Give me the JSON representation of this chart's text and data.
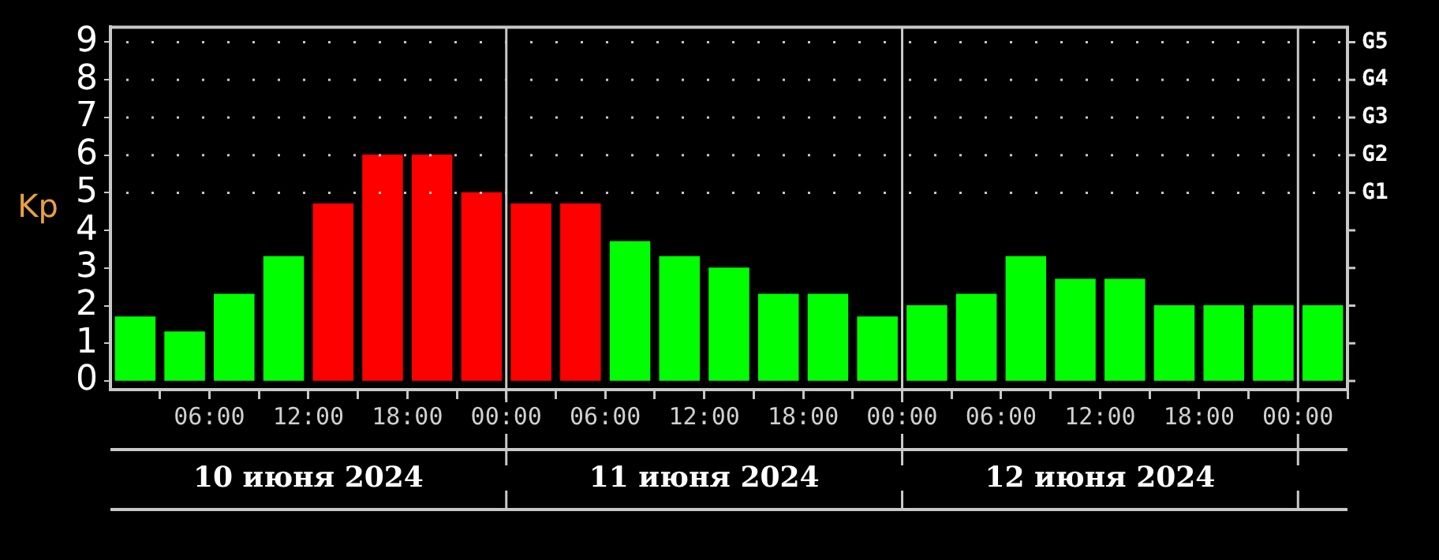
{
  "chart_data": {
    "type": "bar",
    "ylabel": "Kp",
    "x": [
      "2024-06-10T01:30",
      "2024-06-10T04:30",
      "2024-06-10T07:30",
      "2024-06-10T10:30",
      "2024-06-10T13:30",
      "2024-06-10T16:30",
      "2024-06-10T19:30",
      "2024-06-10T22:30",
      "2024-06-11T01:30",
      "2024-06-11T04:30",
      "2024-06-11T07:30",
      "2024-06-11T10:30",
      "2024-06-11T13:30",
      "2024-06-11T16:30",
      "2024-06-11T19:30",
      "2024-06-11T22:30",
      "2024-06-12T01:30",
      "2024-06-12T04:30",
      "2024-06-12T07:30",
      "2024-06-12T10:30",
      "2024-06-12T13:30",
      "2024-06-12T16:30",
      "2024-06-12T19:30",
      "2024-06-12T22:30",
      "2024-06-13T01:30"
    ],
    "values": [
      1.7,
      1.3,
      2.3,
      3.3,
      4.7,
      6,
      6,
      5,
      4.7,
      4.7,
      3.7,
      3.3,
      3,
      2.3,
      2.3,
      1.7,
      2,
      2.3,
      3.3,
      2.7,
      2.7,
      2,
      2,
      2,
      2
    ],
    "colors": [
      "#00ff00",
      "#00ff00",
      "#00ff00",
      "#00ff00",
      "#ff0000",
      "#ff0000",
      "#ff0000",
      "#ff0000",
      "#ff0000",
      "#ff0000",
      "#00ff00",
      "#00ff00",
      "#00ff00",
      "#00ff00",
      "#00ff00",
      "#00ff00",
      "#00ff00",
      "#00ff00",
      "#00ff00",
      "#00ff00",
      "#00ff00",
      "#00ff00",
      "#00ff00",
      "#00ff00",
      "#00ff00"
    ],
    "xlim": [
      "2024-06-10T00:00",
      "2024-06-13T03:00"
    ],
    "xticks": [
      {
        "value": "2024-06-10T03:00",
        "label": null
      },
      {
        "value": "2024-06-10T06:00",
        "label": "06:00"
      },
      {
        "value": "2024-06-10T09:00",
        "label": null
      },
      {
        "value": "2024-06-10T12:00",
        "label": "12:00"
      },
      {
        "value": "2024-06-10T15:00",
        "label": null
      },
      {
        "value": "2024-06-10T18:00",
        "label": "18:00"
      },
      {
        "value": "2024-06-10T21:00",
        "label": null
      },
      {
        "value": "2024-06-11T00:00",
        "label": "00:00"
      },
      {
        "value": "2024-06-11T03:00",
        "label": null
      },
      {
        "value": "2024-06-11T06:00",
        "label": "06:00"
      },
      {
        "value": "2024-06-11T09:00",
        "label": null
      },
      {
        "value": "2024-06-11T12:00",
        "label": "12:00"
      },
      {
        "value": "2024-06-11T15:00",
        "label": null
      },
      {
        "value": "2024-06-11T18:00",
        "label": "18:00"
      },
      {
        "value": "2024-06-11T21:00",
        "label": null
      },
      {
        "value": "2024-06-12T00:00",
        "label": "00:00"
      },
      {
        "value": "2024-06-12T03:00",
        "label": null
      },
      {
        "value": "2024-06-12T06:00",
        "label": "06:00"
      },
      {
        "value": "2024-06-12T09:00",
        "label": null
      },
      {
        "value": "2024-06-12T12:00",
        "label": "12:00"
      },
      {
        "value": "2024-06-12T15:00",
        "label": null
      },
      {
        "value": "2024-06-12T18:00",
        "label": "18:00"
      },
      {
        "value": "2024-06-12T21:00",
        "label": null
      },
      {
        "value": "2024-06-13T00:00",
        "label": "00:00"
      },
      {
        "value": "2024-06-13T03:00",
        "label": null
      }
    ],
    "ylim": [
      -0.23,
      9.4
    ],
    "yticks": [
      0,
      1,
      2,
      3,
      4,
      5,
      6,
      7,
      8,
      9
    ],
    "ref_lines": [
      {
        "axis": "x",
        "value": "2024-06-11T00:00",
        "color": "#c8c8c8"
      },
      {
        "axis": "x",
        "value": "2024-06-12T00:00",
        "color": "#c8c8c8"
      },
      {
        "axis": "x",
        "value": "2024-06-13T00:00",
        "color": "#c8c8c8"
      },
      {
        "axis": "y",
        "value": 5,
        "label": "G1",
        "color": "#c8c8c8",
        "line_style": "dotted"
      },
      {
        "axis": "y",
        "value": 6,
        "label": "G2",
        "color": "#c8c8c8",
        "line_style": "dotted"
      },
      {
        "axis": "y",
        "value": 7,
        "label": "G3",
        "color": "#c8c8c8",
        "line_style": "dotted"
      },
      {
        "axis": "y",
        "value": 8,
        "label": "G4",
        "color": "#c8c8c8",
        "line_style": "dotted"
      },
      {
        "axis": "y",
        "value": 9,
        "label": "G5",
        "color": "#c8c8c8",
        "line_style": "dotted"
      }
    ],
    "annotations": [
      "10 июня 2024",
      "11 июня 2024",
      "12 июня 2024"
    ]
  }
}
